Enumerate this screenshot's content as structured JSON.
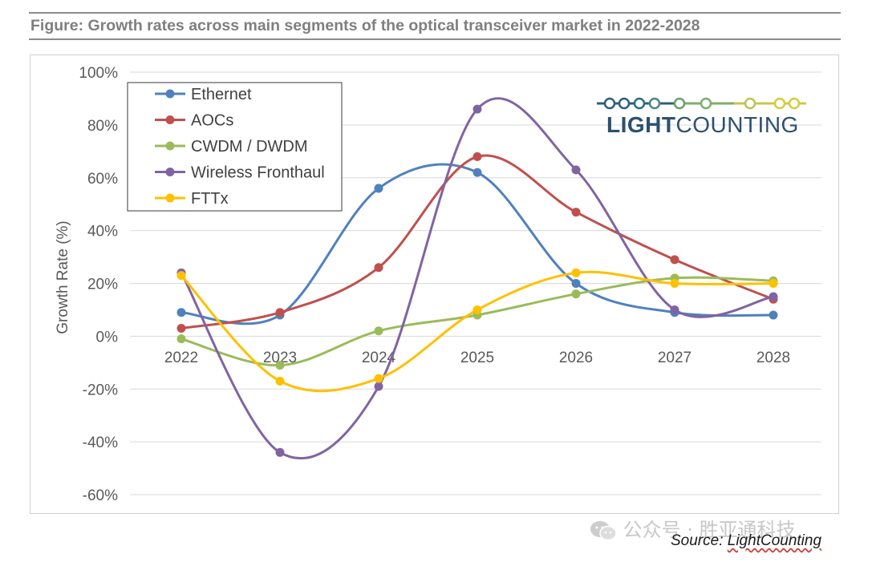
{
  "figure_title": "Figure: Growth rates across main segments of the optical transceiver market in 2022-2028",
  "logo": {
    "text_bold": "LIGHT",
    "text_regular": "COUNTING"
  },
  "watermark": "公众号 · 胜亚通科技",
  "source": {
    "prefix": "Source: ",
    "brand": "LightCounting"
  },
  "colors": {
    "Ethernet": "#4f81bd",
    "AOCs": "#c0504d",
    "CWDM / DWDM": "#9bbb59",
    "Wireless Fronthaul": "#8064a2",
    "FTTx": "#ffc000"
  },
  "chart_data": {
    "type": "line",
    "smooth": true,
    "x": [
      "2022",
      "2023",
      "2024",
      "2025",
      "2026",
      "2027",
      "2028"
    ],
    "ylabel": "Growth Rate (%)",
    "ylim": [
      -60,
      100
    ],
    "yticks": [
      "100%",
      "80%",
      "60%",
      "40%",
      "20%",
      "0%",
      "-20%",
      "-40%",
      "-60%"
    ],
    "ytick_values": [
      100,
      80,
      60,
      40,
      20,
      0,
      -20,
      -40,
      -60
    ],
    "grid": true,
    "legend_position": "top-left",
    "series": [
      {
        "name": "Ethernet",
        "values": [
          9,
          8,
          56,
          62,
          20,
          9,
          8
        ]
      },
      {
        "name": "AOCs",
        "values": [
          3,
          9,
          26,
          68,
          47,
          29,
          14
        ]
      },
      {
        "name": "CWDM / DWDM",
        "values": [
          -1,
          -11,
          2,
          8,
          16,
          22,
          21
        ]
      },
      {
        "name": "Wireless Fronthaul",
        "values": [
          24,
          -44,
          -19,
          86,
          63,
          10,
          15
        ]
      },
      {
        "name": "FTTx",
        "values": [
          23,
          -17,
          -16,
          10,
          24,
          20,
          20
        ]
      }
    ]
  }
}
